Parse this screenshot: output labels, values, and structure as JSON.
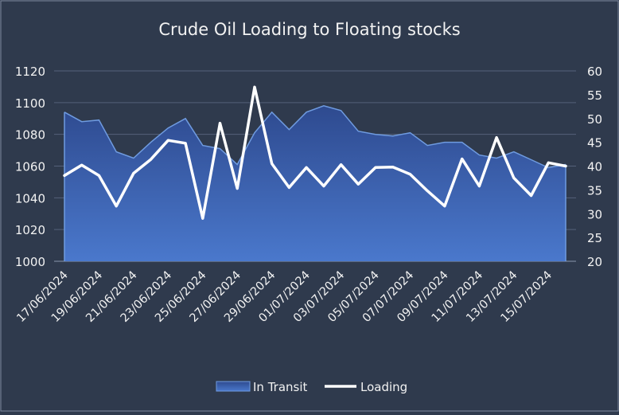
{
  "chart_data": {
    "type": "area",
    "title": "Crude Oil Loading to Floating stocks",
    "x": [
      "17/06/2024",
      "18/06/2024",
      "19/06/2024",
      "20/06/2024",
      "21/06/2024",
      "22/06/2024",
      "23/06/2024",
      "24/06/2024",
      "25/06/2024",
      "26/06/2024",
      "27/06/2024",
      "28/06/2024",
      "29/06/2024",
      "30/06/2024",
      "01/07/2024",
      "02/07/2024",
      "03/07/2024",
      "04/07/2024",
      "05/07/2024",
      "06/07/2024",
      "07/07/2024",
      "08/07/2024",
      "09/07/2024",
      "10/07/2024",
      "11/07/2024",
      "12/07/2024",
      "13/07/2024",
      "14/07/2024",
      "15/07/2024",
      "16/07/2024"
    ],
    "x_tick_labels": [
      "17/06/2024",
      "19/06/2024",
      "21/06/2024",
      "23/06/2024",
      "25/06/2024",
      "27/06/2024",
      "29/06/2024",
      "01/07/2024",
      "03/07/2024",
      "05/07/2024",
      "07/07/2024",
      "09/07/2024",
      "11/07/2024",
      "13/07/2024",
      "15/07/2024"
    ],
    "series": [
      {
        "name": "In Transit",
        "type": "area",
        "axis": "left",
        "color": "#3a5fb0",
        "values": [
          1094,
          1088,
          1089,
          1069,
          1065,
          1075,
          1084,
          1090,
          1073,
          1071,
          1061,
          1081,
          1094,
          1083,
          1094,
          1098,
          1095,
          1082,
          1080,
          1079,
          1081,
          1073,
          1075,
          1075,
          1067,
          1065,
          1069,
          1064,
          1059,
          1061
        ]
      },
      {
        "name": "Loading",
        "type": "line",
        "axis": "right",
        "color": "#ffffff",
        "values": [
          38,
          40.2,
          38,
          31.6,
          38.5,
          41.4,
          45.4,
          44.8,
          29,
          49,
          35.3,
          56.6,
          40.5,
          35.5,
          39.7,
          35.8,
          40.3,
          36.2,
          39.7,
          39.8,
          38.3,
          34.8,
          31.6,
          41.5,
          35.8,
          46,
          37.5,
          33.8,
          40.7,
          40
        ]
      }
    ],
    "y_left": {
      "min": 1000,
      "max": 1120,
      "ticks": [
        1000,
        1020,
        1040,
        1060,
        1080,
        1100,
        1120
      ]
    },
    "y_right": {
      "min": 20,
      "max": 60,
      "ticks": [
        20,
        25,
        30,
        35,
        40,
        45,
        50,
        55,
        60
      ]
    },
    "grid": "horizontal",
    "legend_position": "bottom"
  },
  "colors": {
    "background": "#2f3a4d",
    "grid": "#55627a",
    "area_fill_top": "#2e4a8f",
    "area_fill_bottom": "#4a78cc",
    "area_line": "#6f9be0",
    "line": "#ffffff",
    "text": "#f2f2f2"
  }
}
